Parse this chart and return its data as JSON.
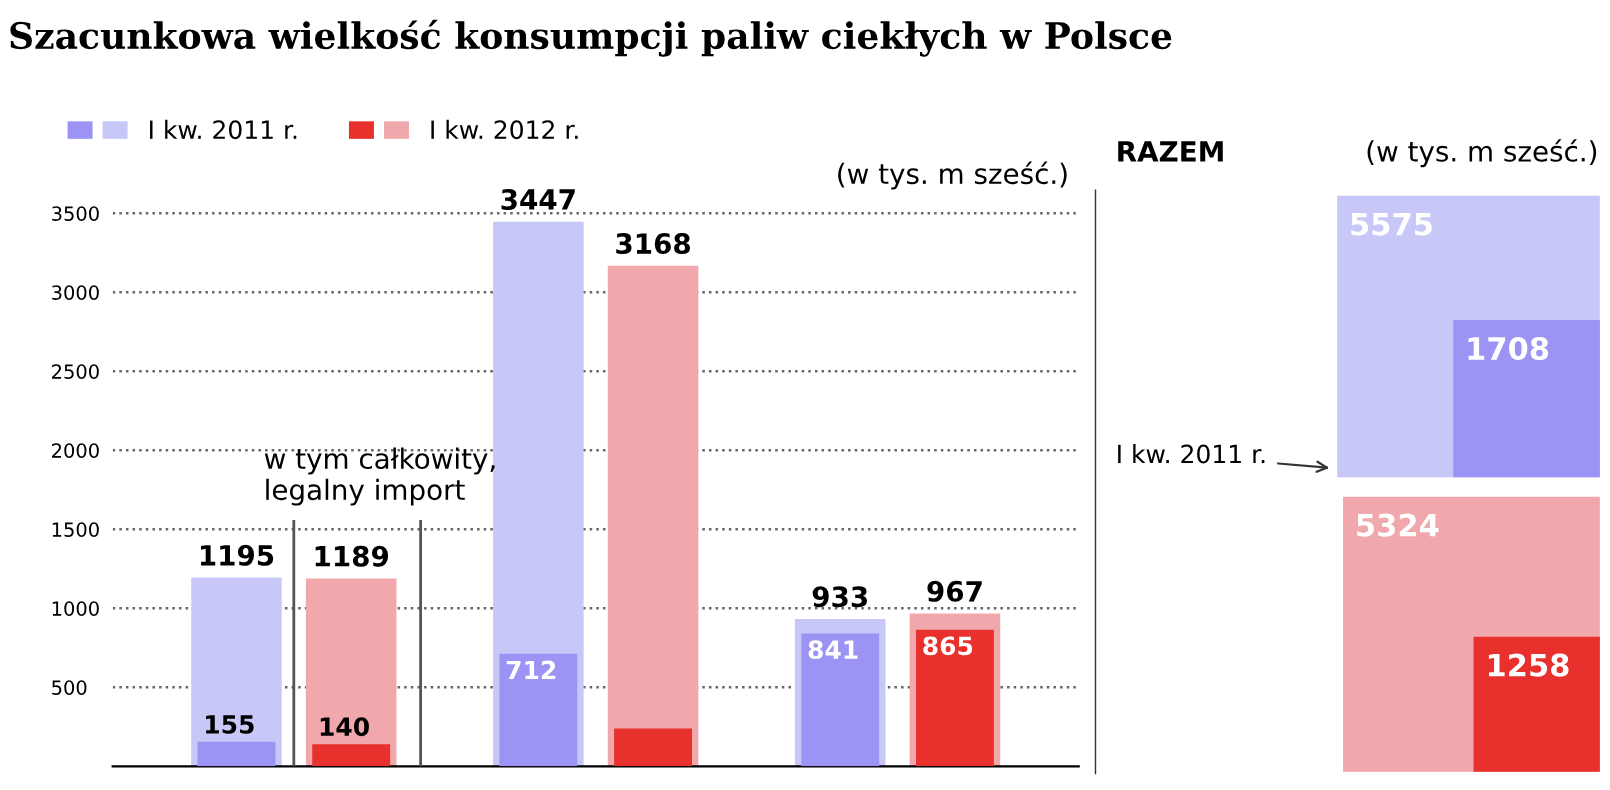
{
  "chart_data": [
    {
      "type": "bar",
      "title": "Szacunkowa wielkość konsumpcji paliw ciekłych w Polsce",
      "subtitle": "(w tys. m sześć.)",
      "categories": [
        null,
        null,
        null
      ],
      "series": [
        {
          "name": "I kw. 2011 r.",
          "color": "#c8c8f8",
          "values": [
            1195,
            3447,
            933
          ],
          "value_labels": [
            "1195",
            "3447",
            "933"
          ]
        },
        {
          "color": "#9c94f4",
          "values": [
            155,
            712,
            841
          ],
          "value_labels": [
            "155",
            "712",
            "841"
          ]
        },
        {
          "name": "I kw. 2012 r.",
          "color": "#f0a8ac",
          "values": [
            1189,
            3168,
            967
          ],
          "value_labels": [
            "1189",
            "3168",
            "967"
          ]
        },
        {
          "color": "#e8302c",
          "values": [
            140,
            240,
            865
          ],
          "value_labels": [
            "140",
            null,
            "865"
          ]
        }
      ],
      "annotations": [
        "w tym całkowity,\nlegalny import"
      ],
      "ylim": [
        0,
        3650
      ],
      "yticks": [
        500,
        1000,
        1500,
        2000,
        2500,
        3000,
        3500
      ],
      "grid": "y",
      "legend": "top left"
    },
    {
      "type": "other",
      "title": "RAZEM",
      "subtitle": "(w tys. m sześć.)",
      "values": [
        5575,
        1708,
        5324,
        1258
      ],
      "colors": [
        "#c8c8f8",
        "#9c94f4",
        "#f0a8ac",
        "#e8302c"
      ],
      "data_labels": true,
      "annotations": [
        "I kw. 2011 r."
      ]
    }
  ]
}
